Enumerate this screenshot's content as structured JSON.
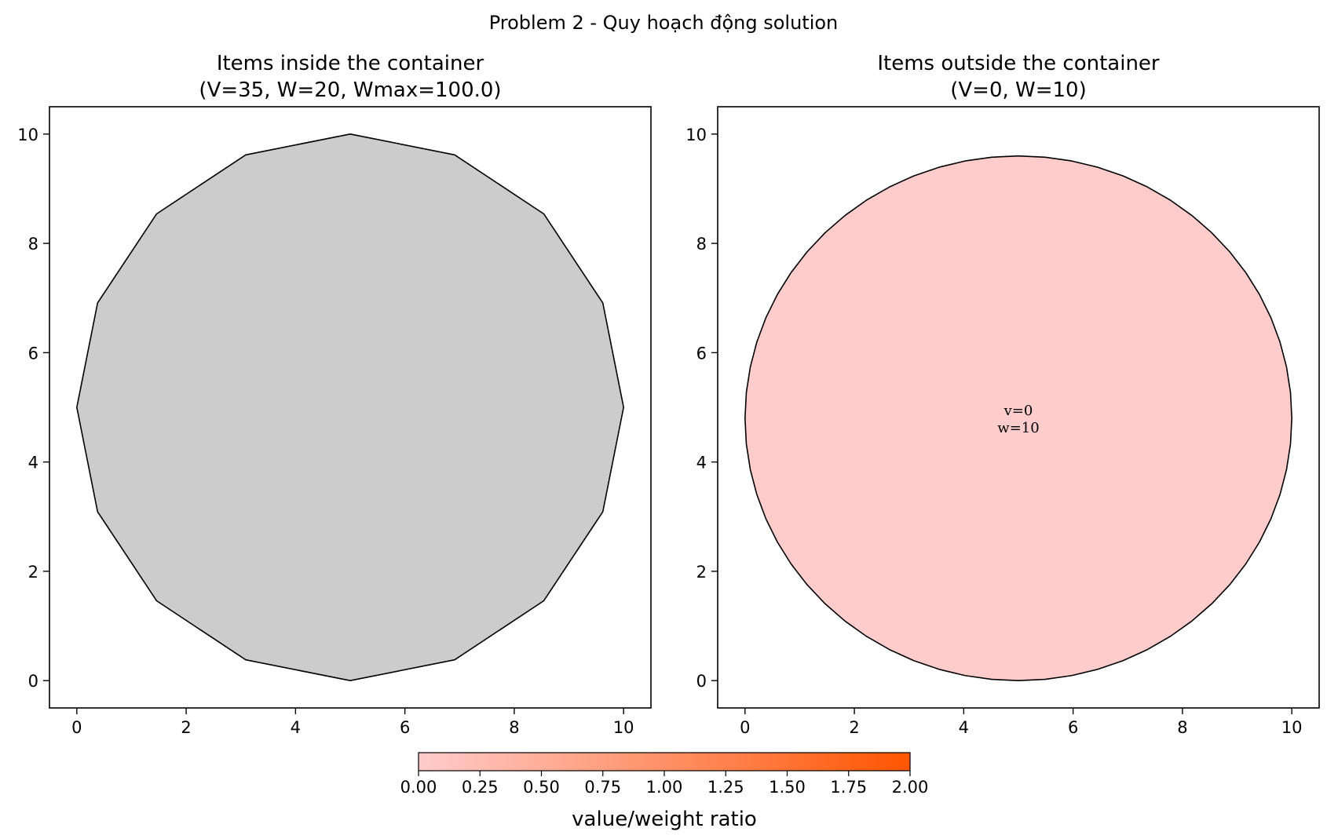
{
  "figure_title": "Problem 2 - Quy hoạch động solution",
  "chart_data": [
    {
      "type": "polygon-plot",
      "title": "Items inside the container\n(V=35, W=20, Wmax=100.0)",
      "xlabel": "",
      "ylabel": "",
      "xlim": [
        -0.5,
        10.5
      ],
      "ylim": [
        -0.5,
        10.5
      ],
      "xticks": [
        0,
        2,
        4,
        6,
        8,
        10
      ],
      "yticks": [
        0,
        2,
        4,
        6,
        8,
        10
      ],
      "grid": false,
      "shapes": [
        {
          "kind": "polygon",
          "fill": "#cccccc",
          "edge": "#000000",
          "points": [
            [
              10,
              5
            ],
            [
              9.62,
              6.91
            ],
            [
              8.54,
              8.54
            ],
            [
              6.91,
              9.62
            ],
            [
              5,
              10
            ],
            [
              3.09,
              9.62
            ],
            [
              1.46,
              8.54
            ],
            [
              0.38,
              6.91
            ],
            [
              0,
              5
            ],
            [
              0.38,
              3.09
            ],
            [
              1.46,
              1.46
            ],
            [
              3.09,
              0.38
            ],
            [
              5,
              0
            ],
            [
              6.91,
              0.38
            ],
            [
              8.54,
              1.46
            ],
            [
              9.62,
              3.09
            ]
          ]
        }
      ]
    },
    {
      "type": "polygon-plot",
      "title": "Items outside the container\n(V=0, W=10)",
      "xlabel": "",
      "ylabel": "",
      "xlim": [
        -0.5,
        10.5
      ],
      "ylim": [
        -0.5,
        10.5
      ],
      "xticks": [
        0,
        2,
        4,
        6,
        8,
        10
      ],
      "yticks": [
        0,
        2,
        4,
        6,
        8,
        10
      ],
      "grid": false,
      "shapes": [
        {
          "kind": "ellipse",
          "fill": "#ffcccc",
          "edge": "#000000",
          "center": [
            5,
            4.8
          ],
          "rx": 5,
          "ry": 4.8,
          "segments": 64,
          "labels": [
            "v=0",
            "w=10"
          ]
        }
      ]
    }
  ],
  "colorbar": {
    "label": "value/weight ratio",
    "min": 0,
    "max": 2,
    "ticks": [
      "0.00",
      "0.25",
      "0.50",
      "0.75",
      "1.00",
      "1.25",
      "1.50",
      "1.75",
      "2.00"
    ],
    "color_start": "#ffcccc",
    "color_end": "#ff5500"
  }
}
